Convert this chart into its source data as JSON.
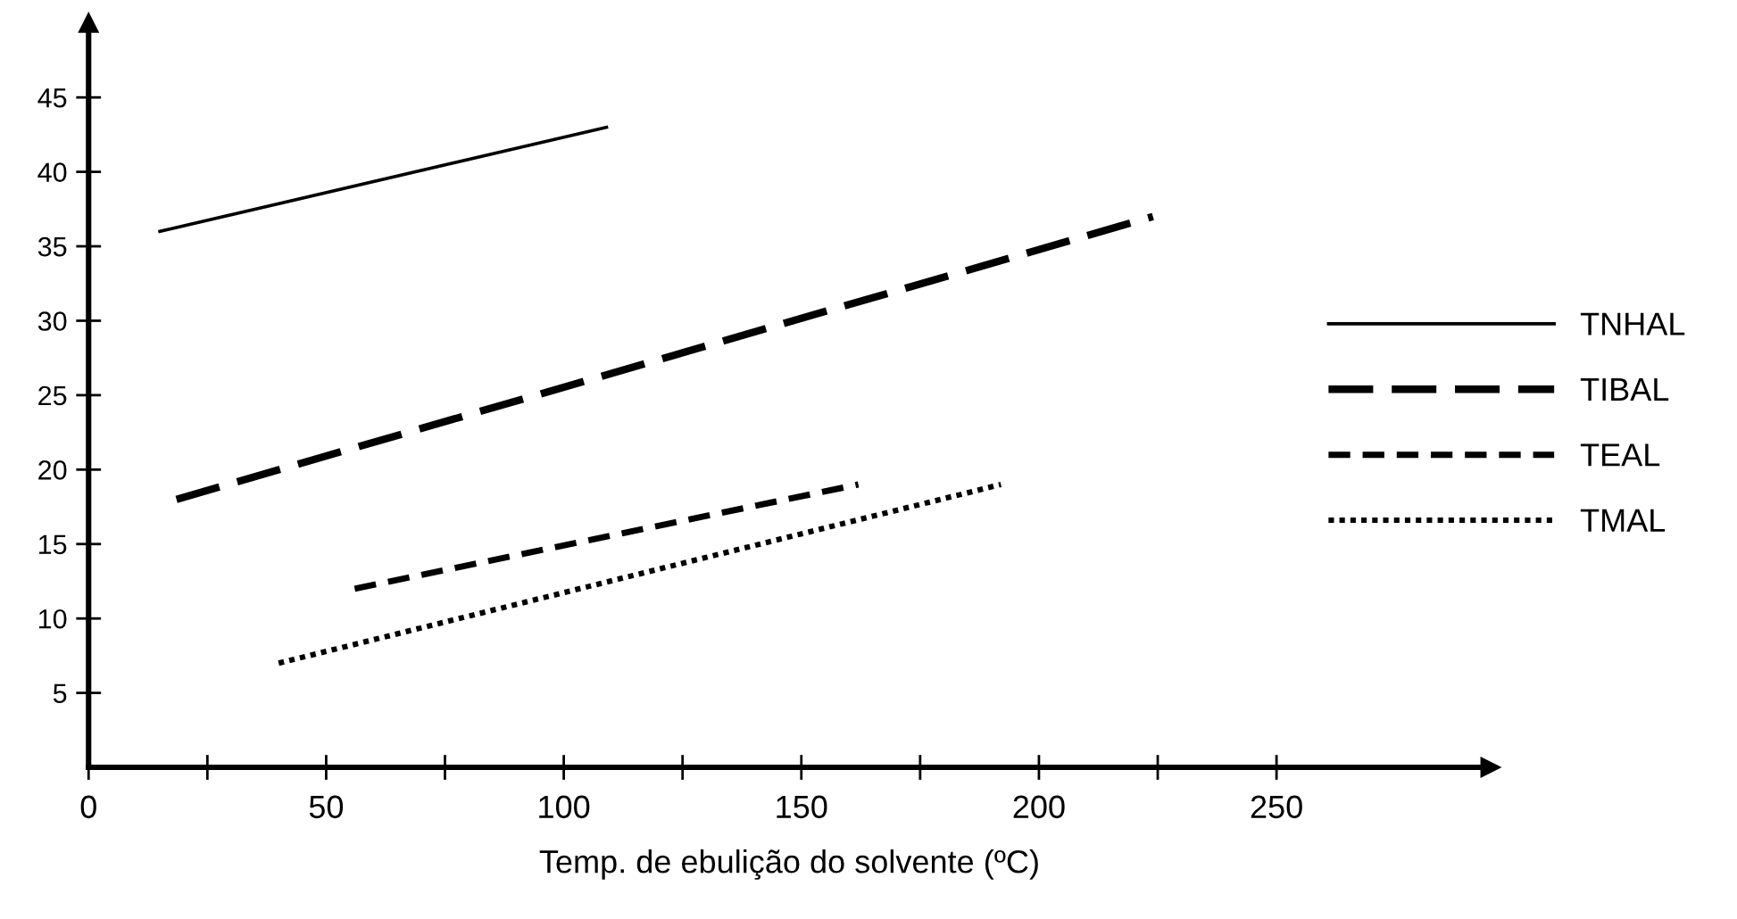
{
  "chart_data": {
    "type": "line",
    "xlabel": "Temp. de ebulição do solvente (ºC)",
    "xlim": [
      0,
      295
    ],
    "ylim": [
      0,
      50
    ],
    "xticks": [
      0,
      {
        "value": 25,
        "label": null
      },
      50,
      {
        "value": 75,
        "label": null
      },
      100,
      {
        "value": 125,
        "label": null
      },
      150,
      {
        "value": 175,
        "label": null
      },
      200,
      {
        "value": 225,
        "label": null
      },
      250
    ],
    "yticks": [
      5,
      10,
      15,
      20,
      25,
      30,
      35,
      40,
      45
    ],
    "grid": false,
    "legend": "right",
    "marker": "none",
    "series": [
      {
        "name": "TNHAL",
        "color": "#000000",
        "line_style": "solid",
        "x": [
          15,
          109
        ],
        "values": [
          36,
          43
        ]
      },
      {
        "name": "TIBAL",
        "color": "#000000",
        "line_style": "dashed",
        "x": [
          18.5,
          224
        ],
        "values": [
          18,
          37
        ]
      },
      {
        "name": "TEAL",
        "color": "#000000",
        "line_style": "dashed",
        "x": [
          56,
          162
        ],
        "values": [
          12,
          19
        ]
      },
      {
        "name": "TMAL",
        "color": "#000000",
        "line_style": "dotted",
        "x": [
          40,
          192
        ],
        "values": [
          7,
          19
        ]
      }
    ]
  }
}
